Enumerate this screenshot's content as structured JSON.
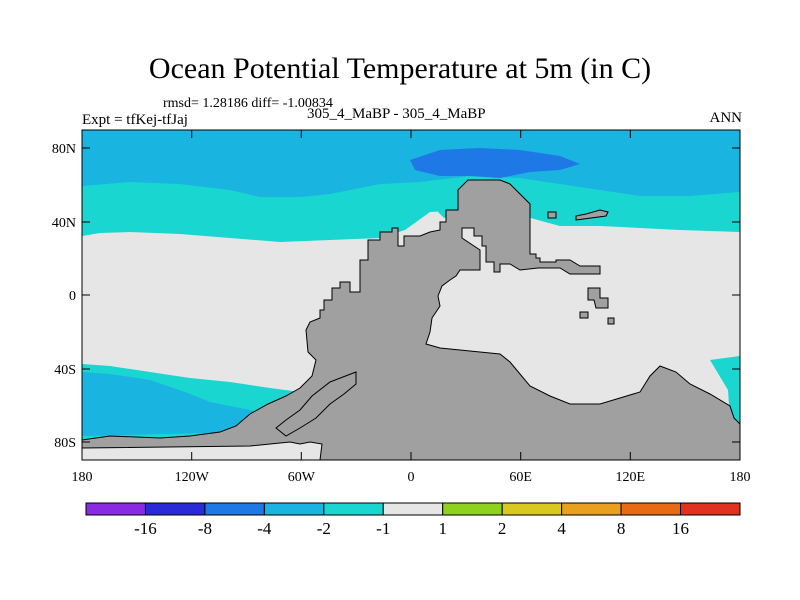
{
  "title": "Ocean Potential Temperature at 5m (in C)",
  "stats": "rmsd= 1.28186 diff= -1.00834",
  "expt": "Expt = tfKej-tfJaj",
  "case": "305_4_MaBP - 305_4_MaBP",
  "season": "ANN",
  "map": {
    "lat_labels": [
      "80N",
      "40N",
      "0",
      "40S",
      "80S"
    ],
    "lon_labels": [
      "180",
      "120W",
      "60W",
      "0",
      "60E",
      "120E",
      "180"
    ]
  },
  "colorbar": {
    "labels": [
      "-16",
      "-8",
      "-4",
      "-2",
      "-1",
      "1",
      "2",
      "4",
      "8",
      "16"
    ],
    "colors": [
      "#8a2be2",
      "#2a2ad8",
      "#1e78e6",
      "#19b4e0",
      "#19d6d0",
      "#e6e6e6",
      "#8fd21e",
      "#d9c81e",
      "#e8a01e",
      "#e86a14",
      "#e0321e"
    ]
  },
  "colors": {
    "land": "#a0a0a0",
    "ocean_neutral": "#e6e6e6",
    "cyan": "#19d6d0",
    "sky": "#19b4e0",
    "blue": "#1e78e6"
  }
}
